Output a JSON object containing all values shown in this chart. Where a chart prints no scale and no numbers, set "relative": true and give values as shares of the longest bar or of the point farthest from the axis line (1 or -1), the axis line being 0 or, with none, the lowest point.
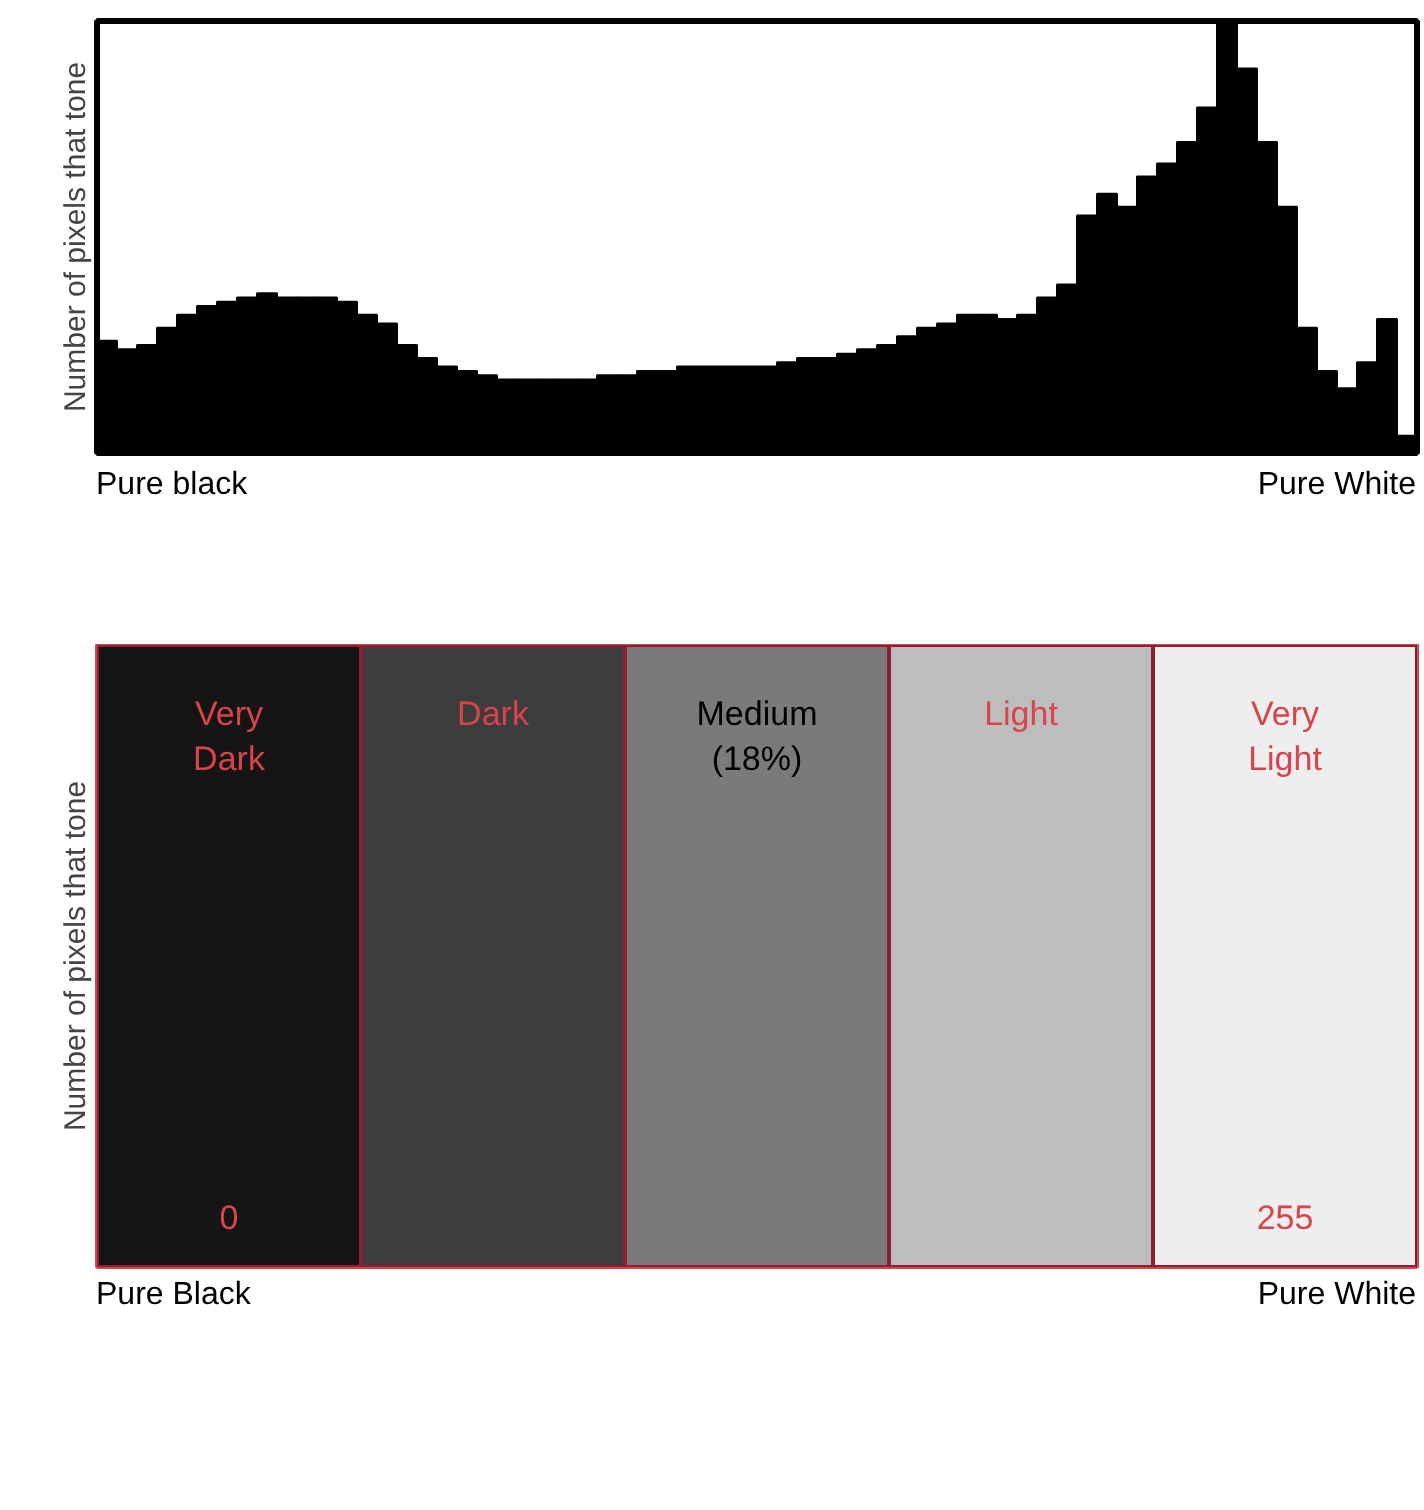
{
  "chart_data": [
    {
      "type": "bar",
      "relative": true,
      "ylabel": "Number of pixels that tone",
      "color": "#000000",
      "grid": false,
      "categories": [
        null,
        null,
        null,
        null,
        null,
        null,
        null,
        null,
        null,
        null,
        null,
        null,
        null,
        null,
        null,
        null,
        null,
        null,
        null,
        null,
        null,
        null,
        null,
        null,
        null,
        null,
        null,
        null,
        null,
        null,
        null,
        null,
        null,
        null,
        null,
        null,
        null,
        null,
        null,
        null,
        null,
        null,
        null,
        null,
        null,
        null,
        null,
        null,
        null,
        null,
        null,
        null,
        null,
        null,
        null,
        null,
        null,
        null,
        null,
        null,
        null,
        null,
        null,
        null,
        null,
        null
      ],
      "values": [
        0.26,
        0.24,
        0.25,
        0.29,
        0.32,
        0.34,
        0.35,
        0.36,
        0.37,
        0.36,
        0.36,
        0.36,
        0.35,
        0.32,
        0.3,
        0.25,
        0.22,
        0.2,
        0.19,
        0.18,
        0.17,
        0.17,
        0.17,
        0.17,
        0.17,
        0.18,
        0.18,
        0.19,
        0.19,
        0.2,
        0.2,
        0.2,
        0.2,
        0.2,
        0.21,
        0.22,
        0.22,
        0.23,
        0.24,
        0.25,
        0.27,
        0.29,
        0.3,
        0.32,
        0.32,
        0.31,
        0.32,
        0.36,
        0.39,
        0.55,
        0.6,
        0.57,
        0.64,
        0.67,
        0.72,
        0.8,
        1.0,
        0.89,
        0.72,
        0.57,
        0.29,
        0.19,
        0.15,
        0.21,
        0.31,
        0.04
      ],
      "annotations": [
        "Pure black",
        "Pure White"
      ]
    },
    {
      "type": "other",
      "ylabel": "Number of pixels that tone",
      "categories": [
        "Very\nDark",
        "Dark",
        "Medium\n(18%)",
        "Light",
        "Very\nLight"
      ],
      "colors": [
        "#151515",
        "#3d3d3d",
        "#7a7a7a",
        "#bdbdbd",
        "#eeeeee"
      ],
      "annotations": [
        "0",
        "255",
        "Pure Black",
        "Pure White"
      ]
    }
  ]
}
